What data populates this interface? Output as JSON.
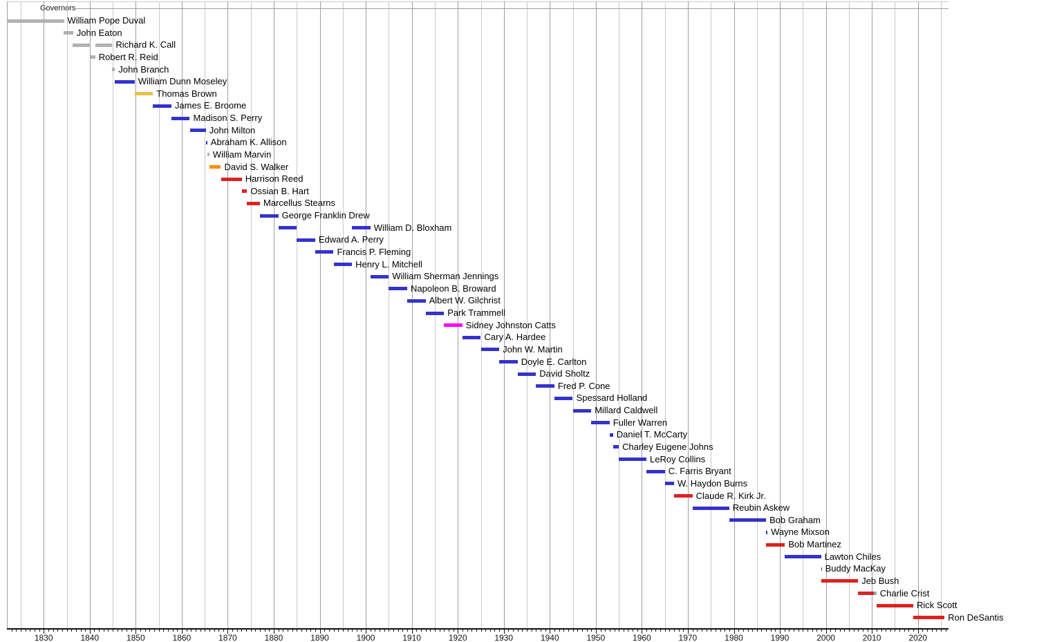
{
  "chart_data": {
    "type": "timeline",
    "title": "Governors",
    "x_axis": {
      "domain_start": 1822,
      "domain_end": 2026.6,
      "minor_tick_interval_years": 1,
      "gridline_interval_years": 5,
      "decade_labels": [
        "1830",
        "1840",
        "1850",
        "1860",
        "1870",
        "1880",
        "1890",
        "1900",
        "1910",
        "1920",
        "1930",
        "1940",
        "1950",
        "1960",
        "1970",
        "1980",
        "1990",
        "2000",
        "2010",
        "2020"
      ]
    },
    "colors": {
      "gray": "#b1b1b1",
      "blue": "#3333cc",
      "yellow": "#e8c04f",
      "orange": "#ff8c00",
      "red": "#dd2222",
      "magenta": "#ff00ff",
      "gray2": "#a6a6a6",
      "grid_decade": "#9e9e9e",
      "grid_minor": "#c9c9c9",
      "axis": "#111111",
      "header_line": "#9e9e9e"
    },
    "governors": [
      {
        "name": "William Pope Duval",
        "color": "gray",
        "terms": [
          [
            1822.0,
            1834.4
          ]
        ]
      },
      {
        "name": "John Eaton",
        "color": "gray",
        "terms": [
          [
            1834.3,
            1836.4
          ]
        ]
      },
      {
        "name": "Richard K. Call",
        "color": "gray",
        "terms": [
          [
            1836.2,
            1840.2
          ],
          [
            1841.2,
            1844.9
          ]
        ]
      },
      {
        "name": "Robert R. Reid",
        "color": "gray",
        "terms": [
          [
            1840.2,
            1841.2
          ]
        ]
      },
      {
        "name": "John Branch",
        "color": "gray",
        "terms": [
          [
            1844.9,
            1845.5
          ]
        ]
      },
      {
        "name": "William Dunn Moseley",
        "color": "blue",
        "terms": [
          [
            1845.5,
            1849.75
          ]
        ]
      },
      {
        "name": "Thomas Brown",
        "color": "yellow",
        "terms": [
          [
            1849.75,
            1853.75
          ]
        ]
      },
      {
        "name": "James E. Broome",
        "color": "blue",
        "terms": [
          [
            1853.75,
            1857.75
          ]
        ]
      },
      {
        "name": "Madison S. Perry",
        "color": "blue",
        "terms": [
          [
            1857.75,
            1861.75
          ]
        ]
      },
      {
        "name": "John Milton",
        "color": "blue",
        "terms": [
          [
            1861.75,
            1865.25
          ]
        ]
      },
      {
        "name": "Abraham K. Allison",
        "color": "blue",
        "terms": [
          [
            1865.25,
            1865.55
          ]
        ]
      },
      {
        "name": "William Marvin",
        "color": "gray",
        "terms": [
          [
            1865.55,
            1866.0
          ]
        ]
      },
      {
        "name": "David S. Walker",
        "color": "orange",
        "terms": [
          [
            1866.0,
            1868.5
          ]
        ]
      },
      {
        "name": "Harrison Reed",
        "color": "red",
        "terms": [
          [
            1868.5,
            1873.05
          ]
        ]
      },
      {
        "name": "Ossian B. Hart",
        "color": "red",
        "terms": [
          [
            1873.05,
            1874.2
          ]
        ]
      },
      {
        "name": "Marcellus Stearns",
        "color": "red",
        "terms": [
          [
            1874.2,
            1877.0
          ]
        ]
      },
      {
        "name": "George Franklin Drew",
        "color": "blue",
        "terms": [
          [
            1877.0,
            1881.0
          ]
        ]
      },
      {
        "name": "William D. Bloxham",
        "color": "blue",
        "terms": [
          [
            1881.0,
            1885.0
          ],
          [
            1897.0,
            1901.0
          ]
        ]
      },
      {
        "name": "Edward A. Perry",
        "color": "blue",
        "terms": [
          [
            1885.0,
            1889.0
          ]
        ]
      },
      {
        "name": "Francis P. Fleming",
        "color": "blue",
        "terms": [
          [
            1889.0,
            1893.0
          ]
        ]
      },
      {
        "name": "Henry L. Mitchell",
        "color": "blue",
        "terms": [
          [
            1893.0,
            1897.0
          ]
        ]
      },
      {
        "name": "William Sherman Jennings",
        "color": "blue",
        "terms": [
          [
            1901.0,
            1905.0
          ]
        ]
      },
      {
        "name": "Napoleon B. Broward",
        "color": "blue",
        "terms": [
          [
            1905.0,
            1909.0
          ]
        ]
      },
      {
        "name": "Albert W. Gilchrist",
        "color": "blue",
        "terms": [
          [
            1909.0,
            1913.0
          ]
        ]
      },
      {
        "name": "Park Trammell",
        "color": "blue",
        "terms": [
          [
            1913.0,
            1917.0
          ]
        ]
      },
      {
        "name": "Sidney Johnston Catts",
        "color": "magenta",
        "terms": [
          [
            1917.0,
            1921.0
          ]
        ]
      },
      {
        "name": "Cary A. Hardee",
        "color": "blue",
        "terms": [
          [
            1921.0,
            1925.0
          ]
        ]
      },
      {
        "name": "John W. Martin",
        "color": "blue",
        "terms": [
          [
            1925.0,
            1929.0
          ]
        ]
      },
      {
        "name": "Doyle E. Carlton",
        "color": "blue",
        "terms": [
          [
            1929.0,
            1933.0
          ]
        ]
      },
      {
        "name": "David Sholtz",
        "color": "blue",
        "terms": [
          [
            1933.0,
            1937.0
          ]
        ]
      },
      {
        "name": "Fred P. Cone",
        "color": "blue",
        "terms": [
          [
            1937.0,
            1941.0
          ]
        ]
      },
      {
        "name": "Spessard Holland",
        "color": "blue",
        "terms": [
          [
            1941.0,
            1945.0
          ]
        ]
      },
      {
        "name": "Millard Caldwell",
        "color": "blue",
        "terms": [
          [
            1945.0,
            1949.0
          ]
        ]
      },
      {
        "name": "Fuller Warren",
        "color": "blue",
        "terms": [
          [
            1949.0,
            1953.0
          ]
        ]
      },
      {
        "name": "Daniel T. McCarty",
        "color": "blue",
        "terms": [
          [
            1953.0,
            1953.75
          ]
        ]
      },
      {
        "name": "Charley Eugene Johns",
        "color": "blue",
        "terms": [
          [
            1953.75,
            1955.0
          ]
        ]
      },
      {
        "name": "LeRoy Collins",
        "color": "blue",
        "terms": [
          [
            1955.0,
            1961.0
          ]
        ]
      },
      {
        "name": "C. Farris Bryant",
        "color": "blue",
        "terms": [
          [
            1961.0,
            1965.0
          ]
        ]
      },
      {
        "name": "W. Haydon Burns",
        "color": "blue",
        "terms": [
          [
            1965.0,
            1967.0
          ]
        ]
      },
      {
        "name": "Claude R. Kirk Jr.",
        "color": "red",
        "terms": [
          [
            1967.0,
            1971.0
          ]
        ]
      },
      {
        "name": "Reubin Askew",
        "color": "blue",
        "terms": [
          [
            1971.0,
            1979.0
          ]
        ]
      },
      {
        "name": "Bob Graham",
        "color": "blue",
        "terms": [
          [
            1979.0,
            1987.0
          ]
        ]
      },
      {
        "name": "Wayne Mixson",
        "color": "blue",
        "terms": [
          [
            1987.0,
            1987.3
          ]
        ]
      },
      {
        "name": "Bob Martinez",
        "color": "red",
        "terms": [
          [
            1987.0,
            1991.1
          ]
        ]
      },
      {
        "name": "Lawton Chiles",
        "color": "blue",
        "terms": [
          [
            1991.05,
            1998.95
          ]
        ]
      },
      {
        "name": "Buddy MacKay",
        "color": "blue",
        "terms": [
          [
            1998.95,
            1999.1
          ]
        ]
      },
      {
        "name": "Jeb Bush",
        "color": "red",
        "terms": [
          [
            1999.0,
            2007.0
          ]
        ]
      },
      {
        "name": "Charlie Crist",
        "color": "red",
        "terms": [
          [
            2007.0,
            2010.4,
            "red"
          ],
          [
            2010.4,
            2011.0,
            "gray2"
          ]
        ]
      },
      {
        "name": "Rick Scott",
        "color": "red",
        "terms": [
          [
            2011.0,
            2019.0
          ]
        ]
      },
      {
        "name": "Ron DeSantis",
        "color": "red",
        "terms": [
          [
            2019.0,
            2025.8
          ]
        ]
      }
    ]
  }
}
